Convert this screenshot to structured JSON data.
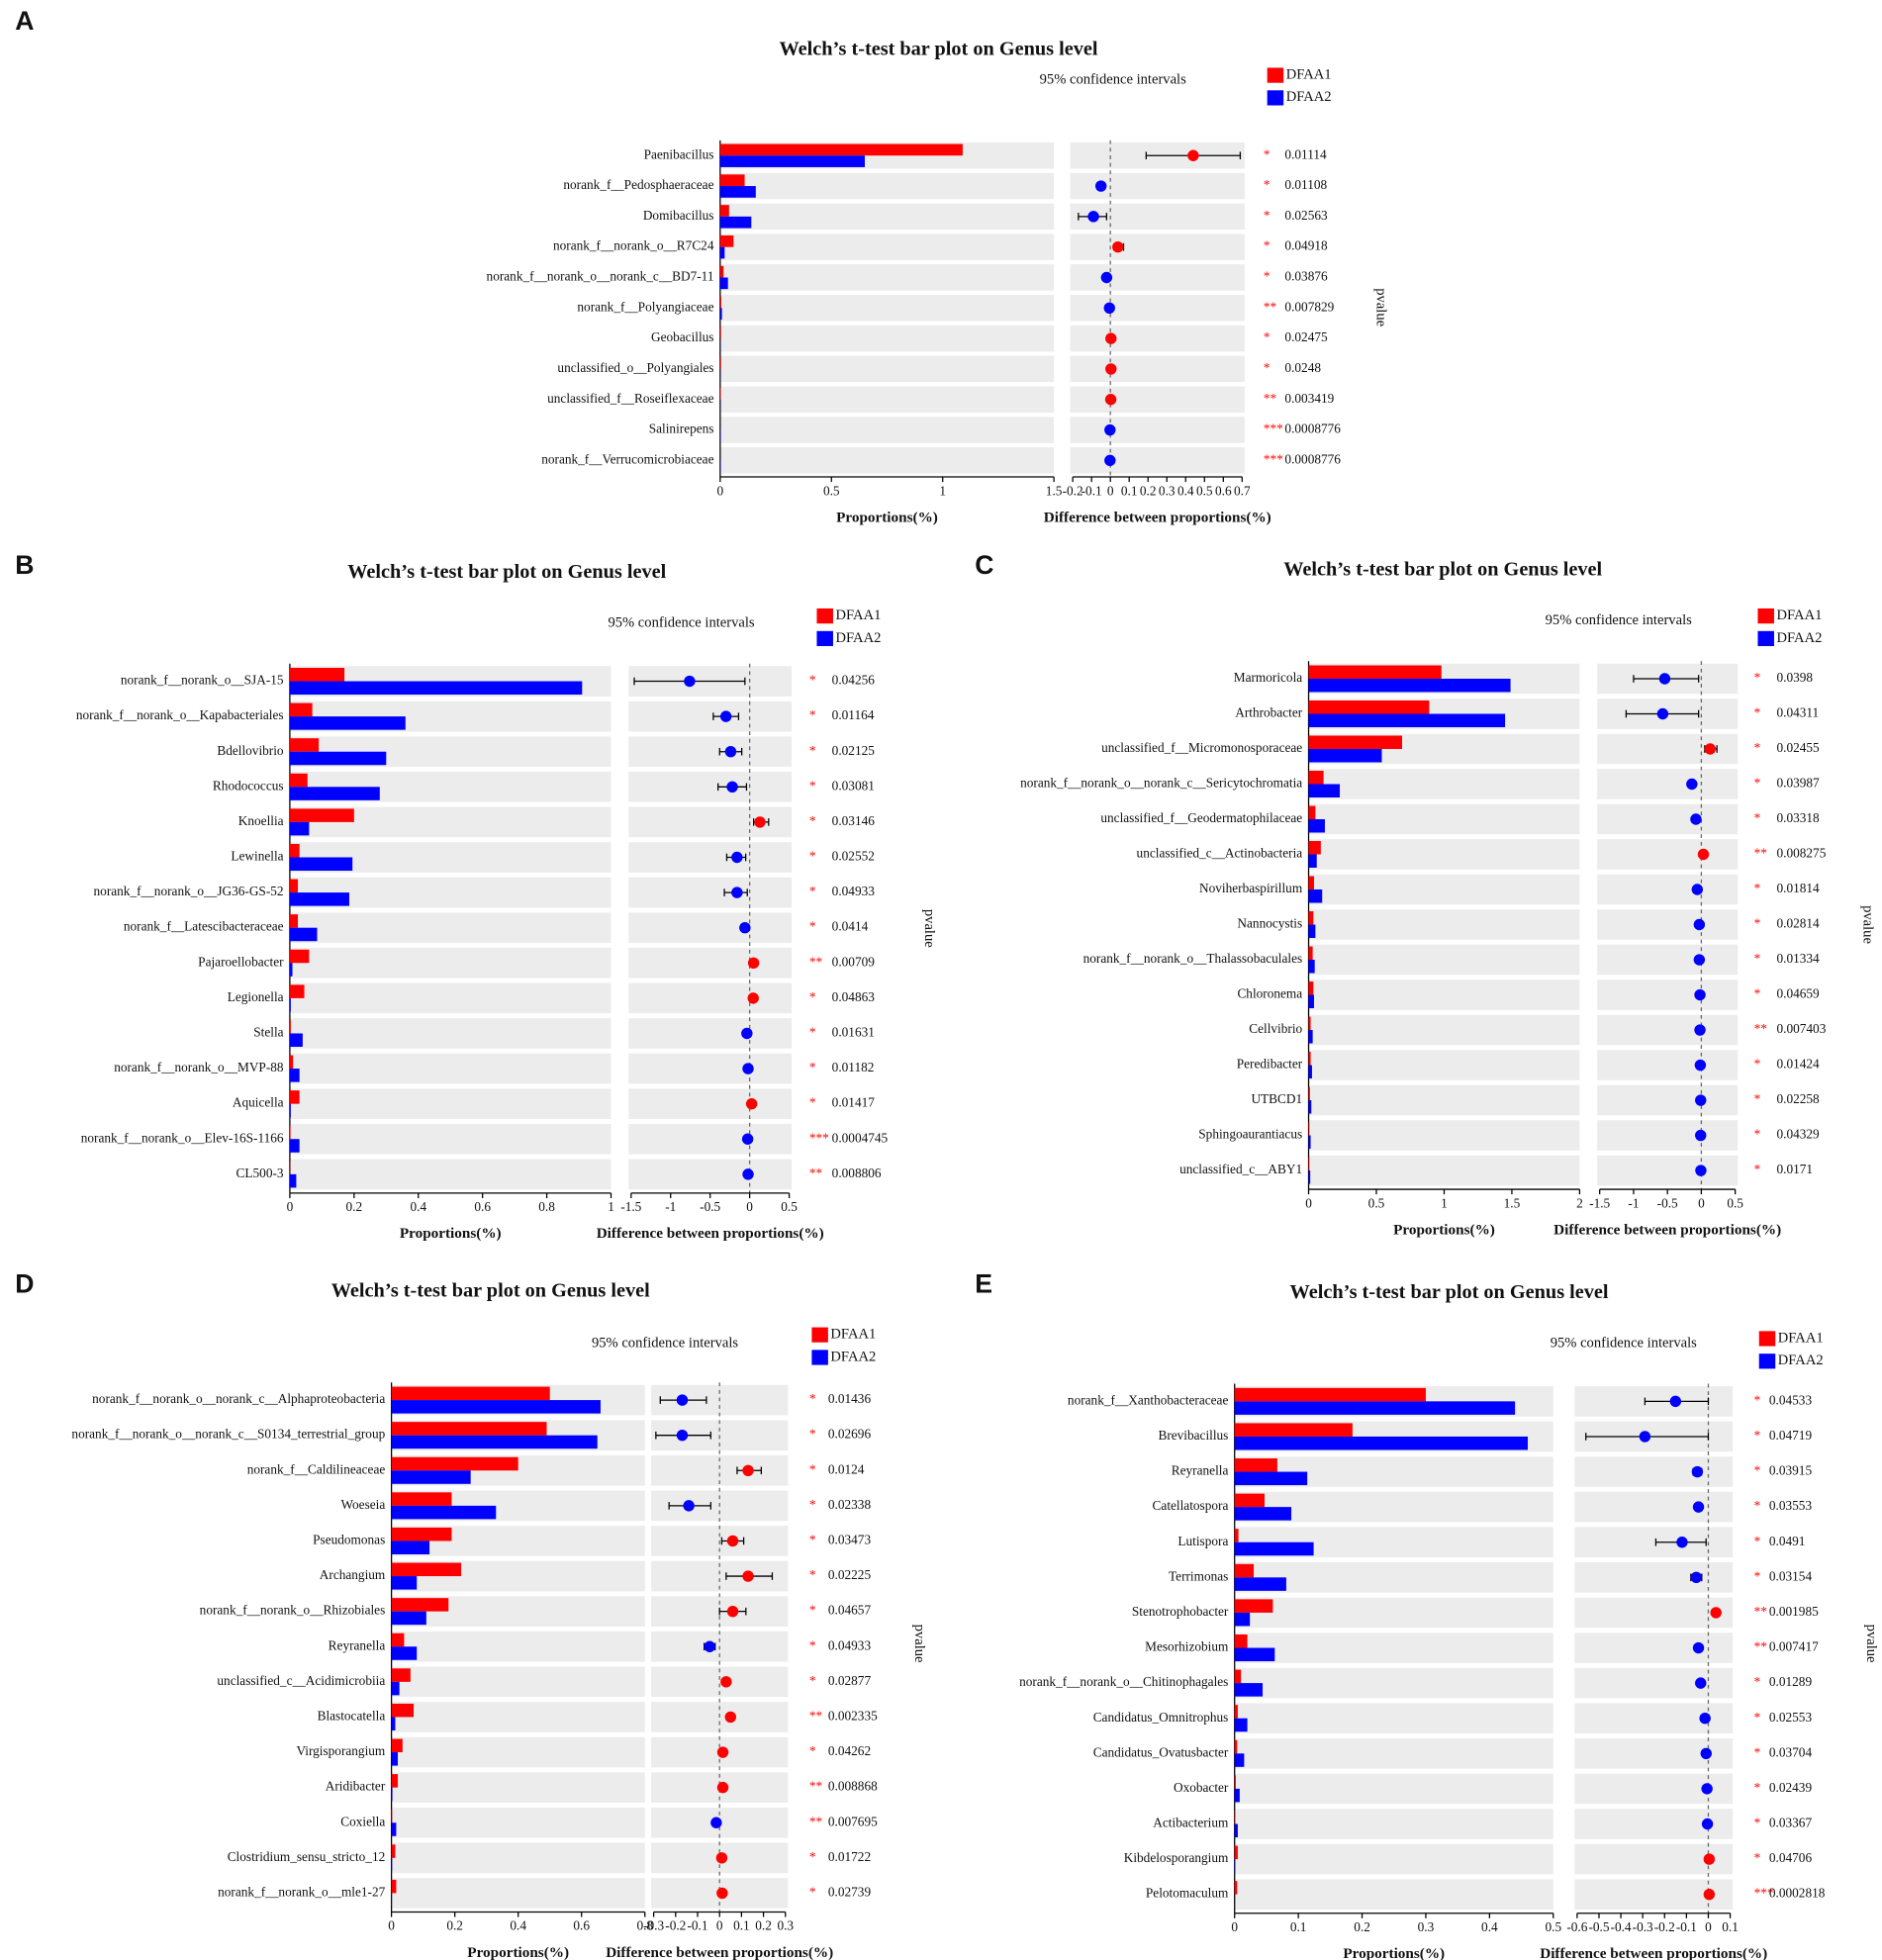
{
  "chart_data": [
    {
      "type": "bar",
      "panel": "A",
      "title": "Welch’s t-test bar plot on Genus level",
      "ci_label": "95% confidence intervals",
      "y2_label": "pvalue",
      "xlabel": "Proportions(%)",
      "diff_xlabel": "Difference between proportions(%)",
      "categories": [
        "Paenibacillus",
        "norank_f__Pedosphaeraceae",
        "Domibacillus",
        "norank_f__norank_o__R7C24",
        "norank_f__norank_o__norank_c__BD7-11",
        "norank_f__Polyangiaceae",
        "Geobacillus",
        "unclassified_o__Polyangiales",
        "unclassified_f__Roseiflexaceae",
        "Salinirepens",
        "norank_f__Verrucomicrobiaceae"
      ],
      "series": [
        {
          "name": "DFAA1",
          "color": "#ff0000",
          "values": [
            1.09,
            0.11,
            0.04,
            0.06,
            0.015,
            0.005,
            0.004,
            0.004,
            0.003,
            0.0,
            0.0
          ]
        },
        {
          "name": "DFAA2",
          "color": "#0000ff",
          "values": [
            0.65,
            0.16,
            0.14,
            0.02,
            0.035,
            0.008,
            0.001,
            0.001,
            0.001,
            0.002,
            0.002
          ]
        }
      ],
      "xlim": [
        0,
        1.5
      ],
      "xticks": [
        0,
        0.5,
        1,
        1.5
      ],
      "diff_values": [
        0.44,
        -0.05,
        -0.09,
        0.04,
        -0.02,
        -0.005,
        0.003,
        0.003,
        0.002,
        -0.002,
        -0.002
      ],
      "ci_lower": [
        0.19,
        -0.07,
        -0.17,
        0.02,
        -0.03,
        -0.008,
        0.001,
        0.001,
        0.001,
        -0.003,
        -0.003
      ],
      "ci_upper": [
        0.69,
        -0.03,
        -0.02,
        0.07,
        -0.01,
        -0.002,
        0.005,
        0.005,
        0.003,
        -0.001,
        -0.001
      ],
      "diff_xlim": [
        -0.2,
        0.7
      ],
      "diff_xticks": [
        -0.2,
        -0.1,
        0,
        0.1,
        0.2,
        0.3,
        0.4,
        0.5,
        0.6,
        0.7
      ],
      "significance": [
        "*",
        "*",
        "*",
        "*",
        "*",
        "**",
        "*",
        "*",
        "**",
        "***",
        "***"
      ],
      "pvalues": [
        0.01114,
        0.01108,
        0.02563,
        0.04918,
        0.03876,
        0.007829,
        0.02475,
        0.0248,
        0.003419,
        0.0008776,
        0.0008776
      ]
    },
    {
      "type": "bar",
      "panel": "B",
      "title": "Welch’s t-test bar plot on Genus level",
      "ci_label": "95% confidence intervals",
      "y2_label": "pvalue",
      "xlabel": "Proportions(%)",
      "diff_xlabel": "Difference between proportions(%)",
      "categories": [
        "norank_f__norank_o__SJA-15",
        "norank_f__norank_o__Kapabacteriales",
        "Bdellovibrio",
        "Rhodococcus",
        "Knoellia",
        "Lewinella",
        "norank_f__norank_o__JG36-GS-52",
        "norank_f__Latescibacteraceae",
        "Pajaroellobacter",
        "Legionella",
        "Stella",
        "norank_f__norank_o__MVP-88",
        "Aquicella",
        "norank_f__norank_o__Elev-16S-1166",
        "CL500-3"
      ],
      "series": [
        {
          "name": "DFAA1",
          "color": "#ff0000",
          "values": [
            0.17,
            0.07,
            0.09,
            0.055,
            0.2,
            0.03,
            0.025,
            0.025,
            0.06,
            0.045,
            0.003,
            0.01,
            0.03,
            0.002,
            0.001
          ]
        },
        {
          "name": "DFAA2",
          "color": "#0000ff",
          "values": [
            0.91,
            0.36,
            0.3,
            0.28,
            0.06,
            0.195,
            0.185,
            0.085,
            0.008,
            0.003,
            0.04,
            0.03,
            0.003,
            0.03,
            0.02
          ]
        }
      ],
      "xlim": [
        0,
        1
      ],
      "xticks": [
        0,
        0.2,
        0.4,
        0.6,
        0.8,
        1
      ],
      "diff_values": [
        -0.76,
        -0.3,
        -0.24,
        -0.22,
        0.13,
        -0.16,
        -0.16,
        -0.06,
        0.05,
        0.045,
        -0.035,
        -0.02,
        0.025,
        -0.025,
        -0.02
      ],
      "ci_lower": [
        -1.46,
        -0.46,
        -0.38,
        -0.4,
        0.05,
        -0.29,
        -0.32,
        -0.08,
        0.03,
        0.03,
        -0.05,
        -0.03,
        0.015,
        -0.035,
        -0.03
      ],
      "ci_upper": [
        -0.06,
        -0.14,
        -0.1,
        -0.04,
        0.24,
        -0.05,
        -0.03,
        -0.04,
        0.07,
        0.06,
        -0.02,
        -0.01,
        0.035,
        -0.015,
        -0.01
      ],
      "diff_xlim": [
        -1.5,
        0.5
      ],
      "diff_xticks": [
        -1.5,
        -1,
        -0.5,
        0,
        0.5
      ],
      "significance": [
        "*",
        "*",
        "*",
        "*",
        "*",
        "*",
        "*",
        "*",
        "**",
        "*",
        "*",
        "*",
        "*",
        "***",
        "**"
      ],
      "pvalues": [
        0.04256,
        0.01164,
        0.02125,
        0.03081,
        0.03146,
        0.02552,
        0.04933,
        0.0414,
        0.00709,
        0.04863,
        0.01631,
        0.01182,
        0.01417,
        0.0004745,
        0.008806
      ]
    },
    {
      "type": "bar",
      "panel": "C",
      "title": "Welch’s t-test bar plot on Genus level",
      "ci_label": "95% confidence intervals",
      "y2_label": "pvalue",
      "xlabel": "Proportions(%)",
      "diff_xlabel": "Difference between proportions(%)",
      "categories": [
        "Marmoricola",
        "Arthrobacter",
        "unclassified_f__Micromonosporaceae",
        "norank_f__norank_o__norank_c__Sericytochromatia",
        "unclassified_f__Geodermatophilaceae",
        "unclassified_c__Actinobacteria",
        "Noviherbaspirillum",
        "Nannocystis",
        "norank_f__norank_o__Thalassobaculales",
        "Chloronema",
        "Cellvibrio",
        "Peredibacter",
        "UTBCD1",
        "Sphingoaurantiacus",
        "unclassified_c__ABY1"
      ],
      "series": [
        {
          "name": "DFAA1",
          "color": "#ff0000",
          "values": [
            0.98,
            0.89,
            0.69,
            0.11,
            0.05,
            0.09,
            0.04,
            0.035,
            0.03,
            0.035,
            0.015,
            0.015,
            0.01,
            0.005,
            0.005
          ]
        },
        {
          "name": "DFAA2",
          "color": "#0000ff",
          "values": [
            1.49,
            1.45,
            0.54,
            0.23,
            0.12,
            0.06,
            0.1,
            0.05,
            0.045,
            0.04,
            0.03,
            0.025,
            0.02,
            0.015,
            0.012
          ]
        }
      ],
      "xlim": [
        0,
        2
      ],
      "xticks": [
        0,
        0.5,
        1,
        1.5,
        2
      ],
      "diff_values": [
        -0.54,
        -0.57,
        0.13,
        -0.14,
        -0.08,
        0.03,
        -0.06,
        -0.03,
        -0.03,
        -0.02,
        -0.02,
        -0.015,
        -0.01,
        -0.01,
        -0.007
      ],
      "ci_lower": [
        -1.0,
        -1.11,
        0.05,
        -0.19,
        -0.11,
        0.01,
        -0.08,
        -0.04,
        -0.04,
        -0.03,
        -0.03,
        -0.02,
        -0.015,
        -0.015,
        -0.01
      ],
      "ci_upper": [
        -0.04,
        -0.04,
        0.23,
        -0.09,
        -0.05,
        0.05,
        -0.04,
        -0.02,
        -0.02,
        -0.01,
        -0.01,
        -0.01,
        -0.005,
        -0.005,
        -0.004
      ],
      "diff_xlim": [
        -1.5,
        0.5
      ],
      "diff_xticks": [
        -1.5,
        -1,
        -0.5,
        0,
        0.5
      ],
      "significance": [
        "*",
        "*",
        "*",
        "*",
        "*",
        "**",
        "*",
        "*",
        "*",
        "*",
        "**",
        "*",
        "*",
        "*",
        "*"
      ],
      "pvalues": [
        0.0398,
        0.04311,
        0.02455,
        0.03987,
        0.03318,
        0.008275,
        0.01814,
        0.02814,
        0.01334,
        0.04659,
        0.007403,
        0.01424,
        0.02258,
        0.04329,
        0.0171
      ]
    },
    {
      "type": "bar",
      "panel": "D",
      "title": "Welch’s t-test bar plot on Genus level",
      "ci_label": "95% confidence intervals",
      "y2_label": "pvalue",
      "xlabel": "Proportions(%)",
      "diff_xlabel": "Difference between proportions(%)",
      "categories": [
        "norank_f__norank_o__norank_c__Alphaproteobacteria",
        "norank_f__norank_o__norank_c__S0134_terrestrial_group",
        "norank_f__Caldilineaceae",
        "Woeseia",
        "Pseudomonas",
        "Archangium",
        "norank_f__norank_o__Rhizobiales",
        "Reyranella",
        "unclassified_c__Acidimicrobiia",
        "Blastocatella",
        "Virgisporangium",
        "Aridibacter",
        "Coxiella",
        "Clostridium_sensu_stricto_12",
        "norank_f__norank_o__mle1-27"
      ],
      "series": [
        {
          "name": "DFAA1",
          "color": "#ff0000",
          "values": [
            0.5,
            0.49,
            0.4,
            0.19,
            0.19,
            0.22,
            0.18,
            0.04,
            0.06,
            0.07,
            0.035,
            0.02,
            0.002,
            0.012,
            0.015
          ]
        },
        {
          "name": "DFAA2",
          "color": "#0000ff",
          "values": [
            0.66,
            0.65,
            0.25,
            0.33,
            0.12,
            0.08,
            0.11,
            0.08,
            0.025,
            0.012,
            0.02,
            0.003,
            0.015,
            0.002,
            0.001
          ]
        }
      ],
      "xlim": [
        0,
        0.8
      ],
      "xticks": [
        0,
        0.2,
        0.4,
        0.6,
        0.8
      ],
      "diff_values": [
        -0.17,
        -0.17,
        0.13,
        -0.14,
        0.06,
        0.13,
        0.06,
        -0.045,
        0.03,
        0.05,
        0.015,
        0.015,
        -0.015,
        0.01,
        0.012
      ],
      "ci_lower": [
        -0.27,
        -0.29,
        0.08,
        -0.23,
        0.01,
        0.03,
        0,
        -0.07,
        0.02,
        0.04,
        0.01,
        0.01,
        -0.02,
        0.005,
        0.008
      ],
      "ci_upper": [
        -0.06,
        -0.04,
        0.19,
        -0.04,
        0.11,
        0.24,
        0.12,
        -0.02,
        0.04,
        0.06,
        0.02,
        0.02,
        -0.01,
        0.015,
        0.016
      ],
      "diff_xlim": [
        -0.3,
        0.3
      ],
      "diff_xticks": [
        -0.3,
        -0.2,
        -0.1,
        0,
        0.1,
        0.2,
        0.3
      ],
      "significance": [
        "*",
        "*",
        "*",
        "*",
        "*",
        "*",
        "*",
        "*",
        "*",
        "**",
        "*",
        "**",
        "**",
        "*",
        "*"
      ],
      "pvalues": [
        0.01436,
        0.02696,
        0.0124,
        0.02338,
        0.03473,
        0.02225,
        0.04657,
        0.04933,
        0.02877,
        0.002335,
        0.04262,
        0.008868,
        0.007695,
        0.01722,
        0.02739
      ]
    },
    {
      "type": "bar",
      "panel": "E",
      "title": "Welch’s t-test bar plot on Genus level",
      "ci_label": "95% confidence intervals",
      "y2_label": "pvalue",
      "xlabel": "Proportions(%)",
      "diff_xlabel": "Difference between proportions(%)",
      "categories": [
        "norank_f__Xanthobacteraceae",
        "Brevibacillus",
        "Reyranella",
        "Catellatospora",
        "Lutispora",
        "Terrimonas",
        "Stenotrophobacter",
        "Mesorhizobium",
        "norank_f__norank_o__Chitinophagales",
        "Candidatus_Omnitrophus",
        "Candidatus_Ovatusbacter",
        "Oxobacter",
        "Actibacterium",
        "Kibdelosporangium",
        "Pelotomaculum"
      ],
      "series": [
        {
          "name": "DFAA1",
          "color": "#ff0000",
          "values": [
            0.3,
            0.185,
            0.067,
            0.047,
            0.006,
            0.03,
            0.06,
            0.02,
            0.01,
            0.005,
            0.004,
            0.002,
            0.001,
            0.005,
            0.004
          ]
        },
        {
          "name": "DFAA2",
          "color": "#0000ff",
          "values": [
            0.44,
            0.46,
            0.114,
            0.089,
            0.124,
            0.081,
            0.024,
            0.063,
            0.044,
            0.02,
            0.015,
            0.008,
            0.005,
            0.001,
            0.0
          ]
        }
      ],
      "xlim": [
        0,
        0.5
      ],
      "xticks": [
        0,
        0.1,
        0.2,
        0.3,
        0.4,
        0.5
      ],
      "diff_values": [
        -0.15,
        -0.29,
        -0.05,
        -0.045,
        -0.12,
        -0.055,
        0.035,
        -0.045,
        -0.035,
        -0.015,
        -0.01,
        -0.006,
        -0.004,
        0.004,
        0.004
      ],
      "ci_lower": [
        -0.29,
        -0.56,
        -0.07,
        -0.06,
        -0.24,
        -0.08,
        0.025,
        -0.055,
        -0.045,
        -0.02,
        -0.015,
        -0.008,
        -0.006,
        0.002,
        0.002
      ],
      "ci_upper": [
        0,
        0,
        -0.03,
        -0.03,
        -0.01,
        -0.03,
        0.045,
        -0.035,
        -0.025,
        -0.01,
        -0.005,
        -0.004,
        -0.002,
        0.006,
        0.006
      ],
      "diff_xlim": [
        -0.6,
        0.1
      ],
      "diff_xticks": [
        -0.6,
        -0.5,
        -0.4,
        -0.3,
        -0.2,
        -0.1,
        0,
        0.1
      ],
      "significance": [
        "*",
        "*",
        "*",
        "*",
        "*",
        "*",
        "**",
        "**",
        "*",
        "*",
        "*",
        "*",
        "*",
        "*",
        "***"
      ],
      "pvalues": [
        0.04533,
        0.04719,
        0.03915,
        0.03553,
        0.0491,
        0.03154,
        0.001985,
        0.007417,
        0.01289,
        0.02553,
        0.03704,
        0.02439,
        0.03367,
        0.04706,
        0.0002818
      ]
    }
  ]
}
